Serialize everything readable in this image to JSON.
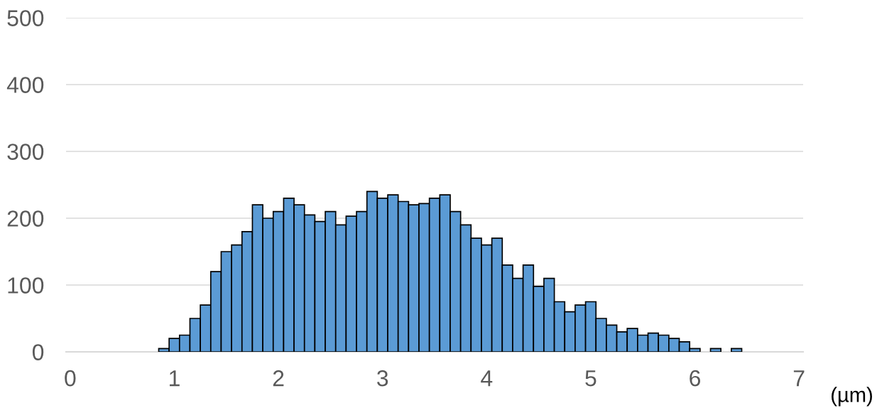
{
  "chart_data": {
    "type": "histogram",
    "xlabel": "(µm)",
    "bins": [
      0.85,
      0.95,
      1.05,
      1.15,
      1.25,
      1.35,
      1.45,
      1.55,
      1.65,
      1.75,
      1.85,
      1.95,
      2.05,
      2.15,
      2.25,
      2.35,
      2.45,
      2.55,
      2.65,
      2.75,
      2.85,
      2.95,
      3.05,
      3.15,
      3.25,
      3.35,
      3.45,
      3.55,
      3.65,
      3.75,
      3.85,
      3.95,
      4.05,
      4.15,
      4.25,
      4.35,
      4.45,
      4.55,
      4.65,
      4.75,
      4.85,
      4.95,
      5.05,
      5.15,
      5.25,
      5.35,
      5.45,
      5.55,
      5.65,
      5.75,
      5.85,
      5.95,
      6.05,
      6.15,
      6.25,
      6.35,
      6.45
    ],
    "values": [
      5,
      20,
      25,
      50,
      70,
      120,
      150,
      160,
      180,
      220,
      200,
      210,
      230,
      220,
      205,
      195,
      210,
      190,
      203,
      210,
      240,
      230,
      235,
      225,
      220,
      222,
      230,
      235,
      210,
      190,
      170,
      160,
      170,
      130,
      110,
      130,
      98,
      110,
      75,
      60,
      70,
      75,
      50,
      40,
      30,
      35,
      25,
      28,
      25,
      20,
      15,
      5,
      0,
      5,
      0,
      5
    ],
    "color": "#5b9bd5",
    "xlim": [
      -0.04,
      7.04
    ],
    "ylim": [
      0,
      500
    ],
    "xticks": [
      0,
      1,
      2,
      3,
      4,
      5,
      6,
      7
    ],
    "yticks": [
      0,
      100,
      200,
      300,
      400,
      500
    ],
    "grid": "y"
  }
}
